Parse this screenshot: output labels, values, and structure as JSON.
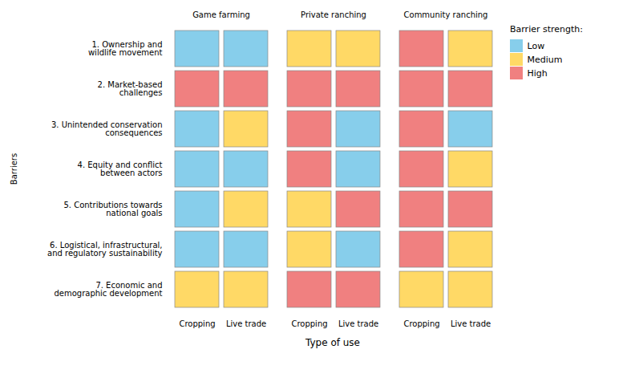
{
  "chart_data": {
    "type": "heatmap",
    "xlabel": "Type of use",
    "ylabel": "Barriers",
    "groups": [
      "Game farming",
      "Private ranching",
      "Community ranching"
    ],
    "subtypes": [
      "Cropping",
      "Live trade"
    ],
    "categories": [
      "1. Ownership and\nwildlife movement",
      "2. Market-based\nchallenges",
      "3. Unintended conservation\nconsequences",
      "4. Equity and conflict\nbetween actors",
      "5. Contributions towards\nnational goals",
      "6. Logistical, infrastructural,\nand regulatory sustainability",
      "7. Economic and\ndemographic development"
    ],
    "cells": [
      [
        "Low",
        "Low",
        "Medium",
        "Medium",
        "High",
        "Medium"
      ],
      [
        "High",
        "High",
        "High",
        "High",
        "High",
        "High"
      ],
      [
        "Low",
        "Medium",
        "High",
        "Low",
        "High",
        "Low"
      ],
      [
        "Low",
        "Low",
        "High",
        "Low",
        "High",
        "Medium"
      ],
      [
        "Low",
        "Medium",
        "Medium",
        "High",
        "High",
        "High"
      ],
      [
        "Low",
        "Low",
        "Medium",
        "Low",
        "High",
        "Medium"
      ],
      [
        "Medium",
        "Medium",
        "High",
        "High",
        "Medium",
        "Medium"
      ]
    ],
    "legend_title": "Barrier strength:",
    "levels": [
      "Low",
      "Medium",
      "High"
    ],
    "colors": [
      "#87CEEB",
      "#FFD966",
      "#F08080"
    ],
    "legend": "right"
  }
}
